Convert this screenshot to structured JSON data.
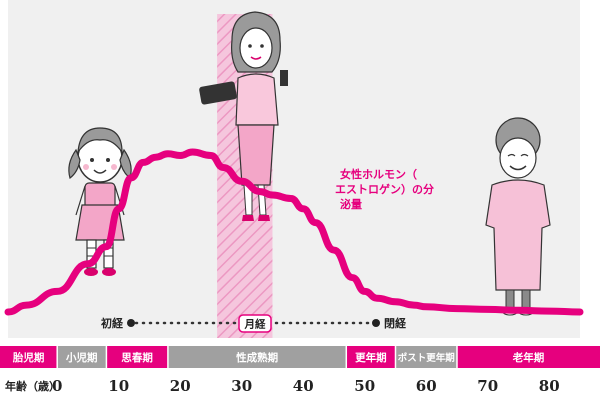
{
  "chart_data": {
    "type": "line",
    "title": "",
    "xlabel": "年齢（歳）",
    "ylabel": "",
    "xlim": [
      -8,
      85
    ],
    "ylim": [
      0,
      100
    ],
    "x_ticks": [
      "0",
      "10",
      "20",
      "30",
      "40",
      "50",
      "60",
      "70",
      "80"
    ],
    "series": [
      {
        "name": "女性ホルモン（エストロゲン）の分泌量",
        "color": "#e6007e",
        "x": [
          -8,
          -5,
          0,
          5,
          8,
          10,
          12,
          14,
          16,
          18,
          20,
          22,
          25,
          27,
          30,
          33,
          35,
          38,
          40,
          42,
          45,
          48,
          50,
          52,
          55,
          58,
          60,
          65,
          70,
          75,
          80,
          85
        ],
        "y": [
          0,
          4,
          12,
          28,
          38,
          60,
          78,
          87,
          90,
          92,
          91,
          93,
          91,
          84,
          76,
          70,
          68,
          66,
          60,
          52,
          36,
          20,
          12,
          8,
          6,
          4,
          3,
          2,
          1.5,
          1,
          0.5,
          0
        ]
      }
    ],
    "annotations": {
      "menarche": "初経",
      "menstruation": "月経",
      "menopause": "閉経",
      "hormone_label": "女性ホルモン（エストロゲン）の分泌量"
    },
    "highlight_range": [
      26,
      35
    ],
    "life_stages": [
      {
        "label": "胎児期",
        "from": -8,
        "to": 0,
        "color": "#e6007e"
      },
      {
        "label": "小児期",
        "from": 0,
        "to": 8,
        "color": "#a0a0a0"
      },
      {
        "label": "思春期",
        "from": 8,
        "to": 18,
        "color": "#e6007e"
      },
      {
        "label": "性成熟期",
        "from": 18,
        "to": 47,
        "color": "#a0a0a0"
      },
      {
        "label": "更年期",
        "from": 47,
        "to": 55,
        "color": "#e6007e"
      },
      {
        "label": "ポスト更年期",
        "from": 55,
        "to": 65,
        "color": "#a0a0a0"
      },
      {
        "label": "老年期",
        "from": 65,
        "to": 85,
        "color": "#e6007e"
      }
    ],
    "grid": false,
    "background": "#f0f0f0"
  }
}
